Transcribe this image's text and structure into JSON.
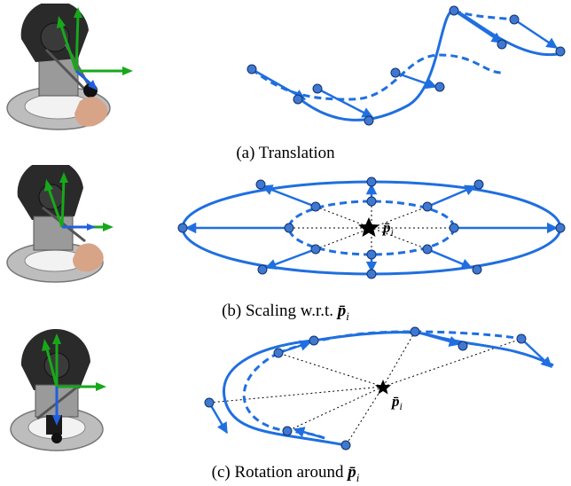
{
  "panels": [
    {
      "id": "a",
      "caption_prefix": "(a) Translation",
      "caption_symbol": ""
    },
    {
      "id": "b",
      "caption_prefix": "(b) Scaling w.r.t. ",
      "caption_symbol": "p̄",
      "caption_sub": "i"
    },
    {
      "id": "c",
      "caption_prefix": "(c) Rotation around ",
      "caption_symbol": "p̄",
      "caption_sub": "i"
    }
  ],
  "center_label": {
    "symbol": "p̄",
    "sub": "i"
  },
  "colors": {
    "curve": "#1f6fe0",
    "point_fill": "#3f78d0",
    "point_stroke": "#12326e",
    "green_arrow": "#17a81a",
    "blue_arrow": "#1f5fe0",
    "dotted": "#000000"
  }
}
